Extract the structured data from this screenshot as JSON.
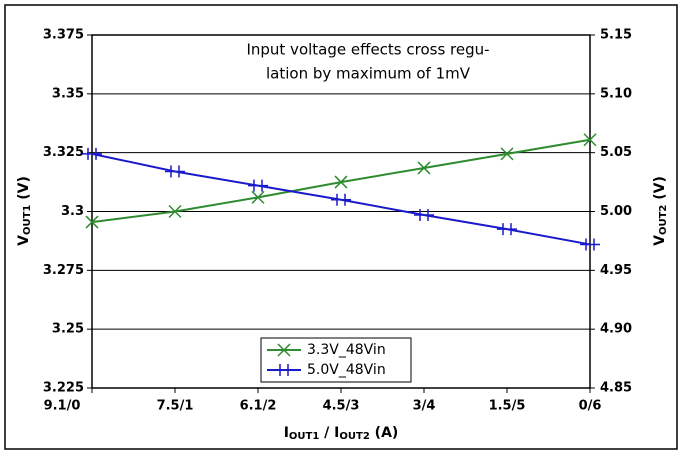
{
  "chart_data": {
    "type": "line",
    "annotation": [
      "Input voltage effects cross regu-",
      "lation by maximum of 1mV"
    ],
    "ylabel": {
      "main": "V",
      "sub": "OUT1",
      "unit": " (V)"
    },
    "y2label": {
      "main": "V",
      "sub": "OUT2",
      "unit": " (V)"
    },
    "xlabel": {
      "main": "I",
      "sub": "OUT1",
      "mid": " / I",
      "sub2": "OUT2",
      "unit": " (A)"
    },
    "categories": [
      "9.1/0",
      "7.5/1",
      "6.1/2",
      "4.5/3",
      "3/4",
      "1.5/5",
      "0/6"
    ],
    "series": [
      {
        "name": "3.3V_48Vin",
        "color": "#2e8b2e",
        "marker": "x",
        "values": [
          3.2955,
          3.3,
          3.306,
          3.3125,
          3.3185,
          3.3245,
          3.3305
        ]
      },
      {
        "name": "5.0V_48Vin",
        "color": "#1a1acc",
        "marker": "h",
        "axis": "y2",
        "values": [
          5.049,
          5.034,
          5.022,
          5.01,
          4.997,
          4.985,
          4.972
        ]
      }
    ],
    "ylim": [
      3.225,
      3.375
    ],
    "yticks": [
      3.225,
      3.25,
      3.275,
      3.3,
      3.325,
      3.35,
      3.375
    ],
    "y2lim": [
      4.85,
      5.15
    ],
    "y2ticks": [
      4.85,
      {
        "value": 4.9,
        "label": "4.90"
      },
      4.95,
      {
        "value": 5.0,
        "label": "5.00"
      },
      5.05,
      {
        "value": 5.1,
        "label": "5.10"
      },
      5.15
    ],
    "grid": true,
    "legend": "lower center"
  }
}
